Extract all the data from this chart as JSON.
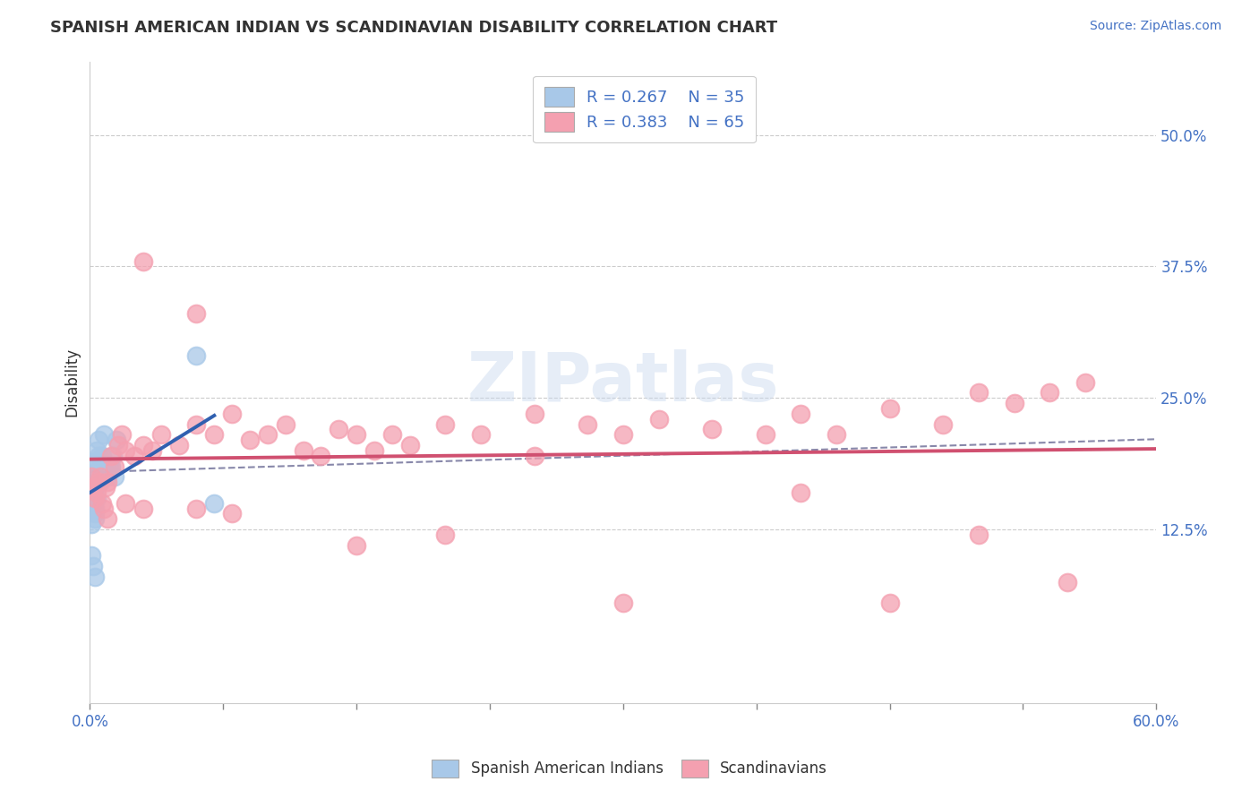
{
  "title": "SPANISH AMERICAN INDIAN VS SCANDINAVIAN DISABILITY CORRELATION CHART",
  "source": "Source: ZipAtlas.com",
  "ylabel": "Disability",
  "right_ytick_labels": [
    "12.5%",
    "25.0%",
    "37.5%",
    "50.0%"
  ],
  "right_ytick_values": [
    0.125,
    0.25,
    0.375,
    0.5
  ],
  "legend_labels": [
    "Spanish American Indians",
    "Scandinavians"
  ],
  "blue_color": "#a8c8e8",
  "pink_color": "#f4a0b0",
  "blue_line_color": "#3060b0",
  "pink_line_color": "#d05070",
  "dash_color": "#8888aa",
  "xlim": [
    0.0,
    0.6
  ],
  "ylim": [
    -0.04,
    0.57
  ],
  "watermark": "ZIPatlas",
  "background_color": "#ffffff",
  "grid_color": "#cccccc",
  "blue_scatter_x": [
    0.001,
    0.001,
    0.002,
    0.002,
    0.003,
    0.003,
    0.004,
    0.004,
    0.005,
    0.005,
    0.006,
    0.007,
    0.008,
    0.009,
    0.01,
    0.011,
    0.012,
    0.013,
    0.014,
    0.015,
    0.001,
    0.002,
    0.003,
    0.004,
    0.002,
    0.003,
    0.001,
    0.002,
    0.001,
    0.003,
    0.06,
    0.07,
    0.001,
    0.002,
    0.003
  ],
  "blue_scatter_y": [
    0.175,
    0.16,
    0.185,
    0.175,
    0.19,
    0.165,
    0.2,
    0.18,
    0.21,
    0.195,
    0.17,
    0.195,
    0.215,
    0.18,
    0.175,
    0.185,
    0.185,
    0.195,
    0.175,
    0.21,
    0.155,
    0.165,
    0.145,
    0.155,
    0.155,
    0.14,
    0.145,
    0.15,
    0.13,
    0.135,
    0.29,
    0.15,
    0.1,
    0.09,
    0.08
  ],
  "pink_scatter_x": [
    0.001,
    0.002,
    0.003,
    0.004,
    0.005,
    0.006,
    0.007,
    0.008,
    0.009,
    0.01,
    0.012,
    0.014,
    0.016,
    0.018,
    0.02,
    0.025,
    0.03,
    0.035,
    0.04,
    0.05,
    0.06,
    0.07,
    0.08,
    0.09,
    0.1,
    0.11,
    0.12,
    0.13,
    0.14,
    0.15,
    0.16,
    0.17,
    0.18,
    0.2,
    0.22,
    0.25,
    0.28,
    0.3,
    0.32,
    0.35,
    0.38,
    0.4,
    0.42,
    0.45,
    0.48,
    0.5,
    0.52,
    0.54,
    0.56,
    0.01,
    0.02,
    0.03,
    0.06,
    0.08,
    0.15,
    0.2,
    0.3,
    0.4,
    0.5,
    0.55,
    0.03,
    0.06,
    0.25,
    0.45
  ],
  "pink_scatter_y": [
    0.175,
    0.165,
    0.155,
    0.16,
    0.17,
    0.175,
    0.15,
    0.145,
    0.165,
    0.17,
    0.195,
    0.185,
    0.205,
    0.215,
    0.2,
    0.195,
    0.205,
    0.2,
    0.215,
    0.205,
    0.225,
    0.215,
    0.235,
    0.21,
    0.215,
    0.225,
    0.2,
    0.195,
    0.22,
    0.215,
    0.2,
    0.215,
    0.205,
    0.225,
    0.215,
    0.235,
    0.225,
    0.215,
    0.23,
    0.22,
    0.215,
    0.235,
    0.215,
    0.24,
    0.225,
    0.255,
    0.245,
    0.255,
    0.265,
    0.135,
    0.15,
    0.145,
    0.145,
    0.14,
    0.11,
    0.12,
    0.055,
    0.16,
    0.12,
    0.075,
    0.38,
    0.33,
    0.195,
    0.055
  ]
}
